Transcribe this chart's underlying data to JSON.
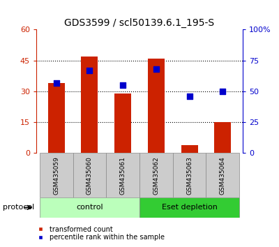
{
  "title": "GDS3599 / scl50139.6.1_195-S",
  "samples": [
    "GSM435059",
    "GSM435060",
    "GSM435061",
    "GSM435062",
    "GSM435063",
    "GSM435064"
  ],
  "bar_values": [
    34,
    47,
    29,
    46,
    4,
    15
  ],
  "percentile_values": [
    57,
    67,
    55,
    68,
    46,
    50
  ],
  "bar_color": "#cc2200",
  "dot_color": "#0000cc",
  "left_ylim": [
    0,
    60
  ],
  "right_ylim": [
    0,
    100
  ],
  "left_yticks": [
    0,
    15,
    30,
    45,
    60
  ],
  "right_yticks": [
    0,
    25,
    50,
    75,
    100
  ],
  "right_yticklabels": [
    "0",
    "25",
    "50",
    "75",
    "100%"
  ],
  "groups": [
    {
      "label": "control",
      "start": 0,
      "end": 3,
      "color": "#bbffbb"
    },
    {
      "label": "Eset depletion",
      "start": 3,
      "end": 6,
      "color": "#33cc33"
    }
  ],
  "protocol_label": "protocol",
  "legend_labels": [
    "transformed count",
    "percentile rank within the sample"
  ],
  "legend_colors": [
    "#cc2200",
    "#0000cc"
  ],
  "grid_yticks": [
    15,
    30,
    45
  ],
  "bar_width": 0.5,
  "sample_box_color": "#cccccc",
  "sample_box_edge": "#888888",
  "left_axis_color": "#cc2200",
  "right_axis_color": "#0000cc",
  "title_fontsize": 10,
  "figsize": [
    4.0,
    3.54
  ],
  "dpi": 100
}
